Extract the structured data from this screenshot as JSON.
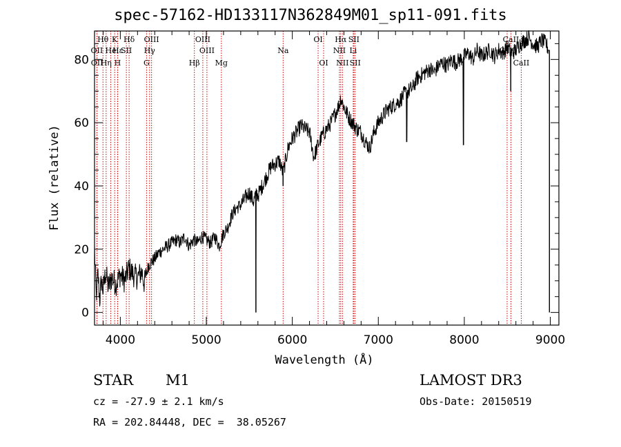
{
  "header": {
    "title": "spec-57162-HD133117N362849M01_sp11-091.fits"
  },
  "footer": {
    "object_class": "STAR",
    "subclass": "M1",
    "survey": "LAMOST DR3",
    "cz": "cz = -27.9 ± 2.1 km/s",
    "obs_date": "Obs-Date: 20150519",
    "coords": "RA = 202.84448, DEC =  38.05267"
  },
  "chart_data": {
    "type": "line",
    "xlabel": "Wavelength (Å)",
    "ylabel": "Flux (relative)",
    "xlim": [
      3700,
      9100
    ],
    "ylim": [
      -4,
      89
    ],
    "x_ticks": [
      4000,
      5000,
      6000,
      7000,
      8000,
      9000
    ],
    "y_ticks": [
      0,
      20,
      40,
      60,
      80
    ],
    "series": [
      {
        "x": [
          3700,
          3720,
          3740,
          3760,
          3780,
          3800,
          3830,
          3860,
          3900,
          3950,
          4000,
          4050,
          4100,
          4150,
          4200,
          4250,
          4280,
          4300,
          4330,
          4400,
          4450,
          4500,
          4550,
          4600,
          4650,
          4700,
          4750,
          4800,
          4850,
          4900,
          4950,
          5000,
          5050,
          5100,
          5150,
          5200,
          5250,
          5300,
          5350,
          5400,
          5450,
          5500,
          5550,
          5577,
          5600,
          5650,
          5700,
          5750,
          5800,
          5850,
          5893,
          5950,
          6000,
          6050,
          6100,
          6150,
          6200,
          6250,
          6300,
          6350,
          6400,
          6450,
          6500,
          6550,
          6563,
          6600,
          6650,
          6700,
          6750,
          6800,
          6850,
          6900,
          6950,
          7000,
          7050,
          7100,
          7150,
          7200,
          7250,
          7300,
          7350,
          7400,
          7450,
          7500,
          7550,
          7600,
          7650,
          7700,
          7750,
          7800,
          7850,
          7900,
          7950,
          8000,
          8050,
          8100,
          8150,
          8200,
          8250,
          8300,
          8350,
          8400,
          8450,
          8500,
          8550,
          8600,
          8650,
          8700,
          8750,
          8800,
          8850,
          8900,
          8950,
          8980
        ],
        "y": [
          20,
          5,
          12,
          4,
          10,
          7,
          13,
          8,
          11,
          9,
          12,
          10,
          14,
          12,
          11,
          13,
          9,
          12,
          15,
          17,
          19,
          20,
          21,
          22,
          23,
          22,
          24,
          21,
          23,
          22,
          24,
          23,
          22,
          24,
          21,
          25,
          27,
          31,
          33,
          34,
          36,
          38,
          35,
          38,
          37,
          40,
          43,
          46,
          47,
          48,
          44,
          52,
          55,
          57,
          59,
          58,
          57,
          49,
          53,
          56,
          58,
          60,
          63,
          66,
          68,
          65,
          62,
          60,
          58,
          57,
          54,
          52,
          57,
          60,
          62,
          64,
          65,
          66,
          67,
          69,
          70,
          71,
          74,
          75,
          76,
          77,
          76,
          78,
          79,
          78,
          80,
          79,
          80,
          81,
          82,
          80,
          83,
          81,
          82,
          83,
          81,
          83,
          82,
          84,
          82,
          83,
          85,
          86,
          87,
          85,
          84,
          86,
          85,
          83
        ]
      }
    ],
    "absorption_dips": [
      {
        "x": 5577,
        "y": 0
      },
      {
        "x": 5893,
        "y": 40
      },
      {
        "x": 7330,
        "y": 54
      },
      {
        "x": 7990,
        "y": 53
      },
      {
        "x": 8540,
        "y": 70
      },
      {
        "x": 8990,
        "y": 0
      }
    ],
    "reference_lines": [
      {
        "label": "Hθ",
        "x": 3798,
        "row": 1
      },
      {
        "label": "OII",
        "x": 3727,
        "row": 2
      },
      {
        "label": "OII",
        "x": 3729,
        "row": 3
      },
      {
        "label": "Hη",
        "x": 3835,
        "row": 3
      },
      {
        "label": "He",
        "x": 3889,
        "row": 2
      },
      {
        "label": "K",
        "x": 3934,
        "row": 1
      },
      {
        "label": "H",
        "x": 3968,
        "row": 3
      },
      {
        "label": "Hε",
        "x": 3970,
        "row": 2
      },
      {
        "label": "SII",
        "x": 4070,
        "row": 2
      },
      {
        "label": "Hδ",
        "x": 4102,
        "row": 1
      },
      {
        "label": "OIII",
        "x": 4363,
        "row": 1
      },
      {
        "label": "Hγ",
        "x": 4340,
        "row": 2
      },
      {
        "label": "G",
        "x": 4305,
        "row": 3
      },
      {
        "label": "OIII",
        "x": 4959,
        "row": 1
      },
      {
        "label": "OIII",
        "x": 5007,
        "row": 2
      },
      {
        "label": "Hβ",
        "x": 4861,
        "row": 3
      },
      {
        "label": "Mg",
        "x": 5175,
        "row": 3
      },
      {
        "label": "Na",
        "x": 5893,
        "row": 2
      },
      {
        "label": "OI",
        "x": 6300,
        "row": 1
      },
      {
        "label": "OI",
        "x": 6364,
        "row": 3
      },
      {
        "label": "Hα",
        "x": 6563,
        "row": 1
      },
      {
        "label": "NII",
        "x": 6548,
        "row": 2
      },
      {
        "label": "NII",
        "x": 6583,
        "row": 3
      },
      {
        "label": "SII",
        "x": 6716,
        "row": 1
      },
      {
        "label": "Li",
        "x": 6708,
        "row": 2
      },
      {
        "label": "SII",
        "x": 6731,
        "row": 3
      },
      {
        "label": "CaII",
        "x": 8542,
        "row": 1
      },
      {
        "label": "CaII",
        "x": 8498,
        "row": 2
      },
      {
        "label": "CaII",
        "x": 8662,
        "row": 3
      }
    ],
    "colors": {
      "spectrum": "#000000",
      "reference_line": "#cc0000",
      "axes": "#000000"
    },
    "grid": false
  }
}
